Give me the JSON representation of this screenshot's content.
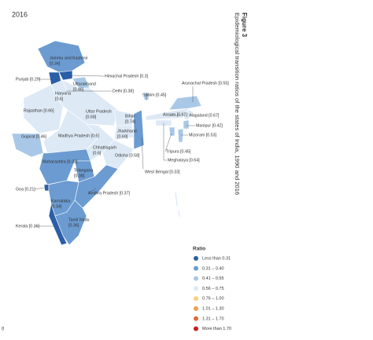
{
  "year": "2016",
  "figure": {
    "number": "Figure 3",
    "title": "Epidemiological transition ratios of the states of India, 1990 and 2016"
  },
  "states": [
    {
      "lines": [
        "Jammu and Kashmir",
        "[0.34]"
      ]
    },
    {
      "lines": [
        "Punjab [0.29]"
      ]
    },
    {
      "lines": [
        "Himachal Pradesh [0.3]"
      ]
    },
    {
      "lines": [
        "Uttarakhand",
        "[0.46]"
      ]
    },
    {
      "lines": [
        "Haryana",
        "[0.6]"
      ]
    },
    {
      "lines": [
        "Delhi [0.38]"
      ]
    },
    {
      "lines": [
        "Rajasthan [0.66]"
      ]
    },
    {
      "lines": [
        "Uttar Pradesh",
        "[0.68]"
      ]
    },
    {
      "lines": [
        "Bihar",
        "[0.74]"
      ]
    },
    {
      "lines": [
        "Gujarat [0.46]"
      ]
    },
    {
      "lines": [
        "Madhya Pradesh [0.6]"
      ]
    },
    {
      "lines": [
        "Jharkhand",
        "[0.69]"
      ]
    },
    {
      "lines": [
        "Chhattisgarh",
        "[0.6]"
      ]
    },
    {
      "lines": [
        "Odisha [0.58]"
      ]
    },
    {
      "lines": [
        "Maharashtra [0.33]"
      ]
    },
    {
      "lines": [
        "Telangana",
        "[0.38]"
      ]
    },
    {
      "lines": [
        "Goa [0.21]"
      ]
    },
    {
      "lines": [
        "Andhra Pradesh [0.37]"
      ]
    },
    {
      "lines": [
        "Karnataka",
        "[0.34]"
      ]
    },
    {
      "lines": [
        "Kerala [0.16]"
      ]
    },
    {
      "lines": [
        "Tamil Nadu",
        "[0.36]"
      ]
    },
    {
      "lines": [
        "Sikkim [0.45]"
      ]
    },
    {
      "lines": [
        "Arunachal Pradesh [0.55]"
      ]
    },
    {
      "lines": [
        "Assam [0.62]"
      ]
    },
    {
      "lines": [
        "Nagaland [0.67]"
      ]
    },
    {
      "lines": [
        "Manipur [0.42]"
      ]
    },
    {
      "lines": [
        "Mizoram [0.53]"
      ]
    },
    {
      "lines": [
        "Tripura [0.45]"
      ]
    },
    {
      "lines": [
        "Meghalaya [0.64]"
      ]
    },
    {
      "lines": [
        "West Bengal [0.33]"
      ]
    }
  ],
  "legend": {
    "title": "Ratio",
    "items": [
      {
        "label": "Less than 0.31",
        "color": "#2b5ea7"
      },
      {
        "label": "0.31 – 0.40",
        "color": "#6b9bd1"
      },
      {
        "label": "0.41 – 0.55",
        "color": "#a9c8e8"
      },
      {
        "label": "0.56 – 0.75",
        "color": "#dde9f5"
      },
      {
        "label": "0.76 – 1.00",
        "color": "#f6d27a"
      },
      {
        "label": "1.01 – 1.30",
        "color": "#f0a050"
      },
      {
        "label": "1.31 – 1.70",
        "color": "#e46a3a"
      },
      {
        "label": "More than 1.70",
        "color": "#c8201f"
      }
    ]
  },
  "page_number": "0"
}
